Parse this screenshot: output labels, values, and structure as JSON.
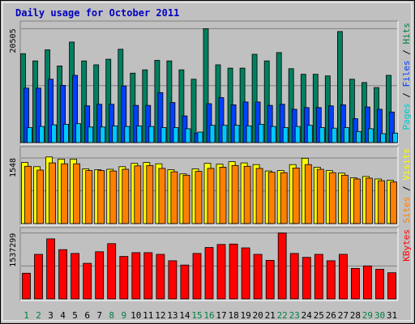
{
  "chart_data": {
    "type": "bar",
    "title": "Daily usage for October 2011",
    "categories": [
      "1",
      "2",
      "3",
      "4",
      "5",
      "6",
      "7",
      "8",
      "9",
      "10",
      "11",
      "12",
      "13",
      "14",
      "15",
      "16",
      "17",
      "18",
      "19",
      "20",
      "21",
      "22",
      "23",
      "24",
      "25",
      "26",
      "27",
      "28",
      "29",
      "30",
      "31"
    ],
    "weekend_days": [
      "1",
      "2",
      "8",
      "9",
      "15",
      "16",
      "22",
      "23",
      "29",
      "30"
    ],
    "panels": [
      {
        "id": "hits-files-pages",
        "max_label": "20505",
        "ymax": 21000,
        "label_parts": [
          "Pages",
          "Files",
          "Hits"
        ],
        "label_colors": [
          "#00c8c8",
          "#0040ff",
          "#008040"
        ],
        "series": [
          {
            "name": "Hits",
            "color": "#008060",
            "values": [
              16000,
              14700,
              16700,
              13800,
              18100,
              14700,
              14000,
              15000,
              16800,
              12500,
              13100,
              14800,
              14700,
              13100,
              11400,
              20500,
              14000,
              13400,
              13400,
              15900,
              14700,
              16200,
              13300,
              12300,
              12300,
              12000,
              20000,
              11400,
              10800,
              9900,
              12100
            ]
          },
          {
            "name": "Files",
            "color": "#0040ff",
            "values": [
              9800,
              9800,
              11400,
              10300,
              12100,
              6600,
              6900,
              6900,
              10200,
              6700,
              6700,
              9000,
              7200,
              4800,
              1700,
              7000,
              8100,
              6800,
              7300,
              7300,
              6700,
              6900,
              6000,
              6300,
              6300,
              6600,
              6800,
              4300,
              6400,
              6000,
              5500
            ]
          },
          {
            "name": "Pages",
            "color": "#00c8ff",
            "values": [
              2700,
              2900,
              3200,
              3300,
              3400,
              2800,
              2800,
              3000,
              2900,
              3000,
              2900,
              2700,
              2700,
              2500,
              1900,
              3100,
              3100,
              3100,
              3000,
              3300,
              2900,
              2700,
              2900,
              3100,
              2700,
              2600,
              2700,
              2000,
              2500,
              1600,
              1700
            ]
          }
        ]
      },
      {
        "id": "visits-sites",
        "max_label": "1548",
        "ymax": 1700,
        "label_parts": [
          "Sites",
          "Visits"
        ],
        "label_colors": [
          "#ff8000",
          "#ffff00"
        ],
        "series": [
          {
            "name": "Visits",
            "color": "#ffff00",
            "values": [
              1440,
              1340,
              1570,
              1520,
              1520,
              1290,
              1270,
              1280,
              1340,
              1420,
              1440,
              1410,
              1270,
              1170,
              1290,
              1420,
              1400,
              1460,
              1430,
              1390,
              1240,
              1250,
              1390,
              1540,
              1330,
              1250,
              1190,
              1080,
              1110,
              1050,
              1020
            ]
          },
          {
            "name": "Sites",
            "color": "#ff8000",
            "values": [
              1350,
              1260,
              1430,
              1410,
              1410,
              1250,
              1250,
              1240,
              1280,
              1360,
              1370,
              1300,
              1220,
              1140,
              1230,
              1300,
              1330,
              1370,
              1350,
              1300,
              1210,
              1200,
              1310,
              1390,
              1280,
              1200,
              1140,
              1050,
              1070,
              1010,
              980
            ]
          }
        ]
      },
      {
        "id": "kbytes",
        "max_label": "1537299",
        "ymax": 1550000,
        "label_parts": [
          "KBytes"
        ],
        "label_colors": [
          "#ff0000"
        ],
        "series": [
          {
            "name": "KBytes",
            "color": "#ff0000",
            "values": [
              600000,
              1040000,
              1400000,
              1150000,
              1060000,
              830000,
              1100000,
              1290000,
              990000,
              1080000,
              1080000,
              1040000,
              890000,
              790000,
              1060000,
              1200000,
              1270000,
              1280000,
              1190000,
              1040000,
              900000,
              1537299,
              1060000,
              970000,
              1040000,
              890000,
              1040000,
              710000,
              770000,
              690000,
              610000
            ]
          }
        ]
      }
    ]
  }
}
